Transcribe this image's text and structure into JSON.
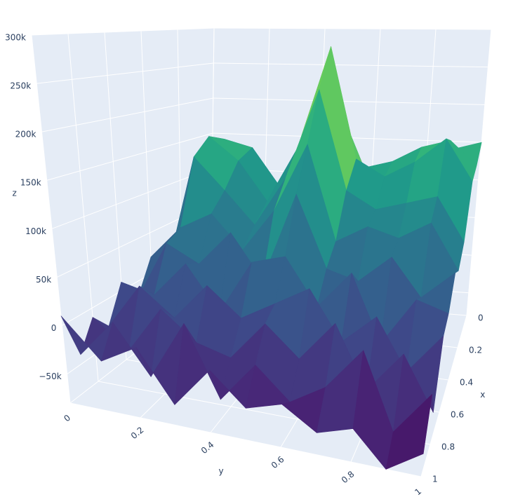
{
  "chart_data": {
    "type": "surface",
    "x": [
      0,
      0.1,
      0.2,
      0.3,
      0.4,
      0.5,
      0.6,
      0.7,
      0.8,
      0.9,
      1
    ],
    "y": [
      0,
      0.1,
      0.2,
      0.3,
      0.4,
      0.5,
      0.6,
      0.7,
      0.8,
      0.9,
      1
    ],
    "z": [
      [
        20000,
        40000,
        60000,
        50000,
        70000,
        90000,
        60000,
        80000,
        110000,
        140000,
        150000
      ],
      [
        10000,
        150000,
        140000,
        90000,
        160000,
        200000,
        120000,
        130000,
        150000,
        160000,
        130000
      ],
      [
        0,
        160000,
        130000,
        80000,
        150000,
        280000,
        140000,
        120000,
        140000,
        170000,
        120000
      ],
      [
        -10000,
        140000,
        100000,
        60000,
        120000,
        230000,
        110000,
        90000,
        100000,
        110000,
        60000
      ],
      [
        20000,
        60000,
        80000,
        40000,
        90000,
        170000,
        60000,
        80000,
        70000,
        90000,
        40000
      ],
      [
        -20000,
        50000,
        30000,
        70000,
        20000,
        120000,
        40000,
        30000,
        60000,
        20000,
        50000
      ],
      [
        10000,
        0,
        40000,
        -10000,
        50000,
        60000,
        10000,
        50000,
        -20000,
        30000,
        20000
      ],
      [
        -30000,
        20000,
        -10000,
        30000,
        0,
        20000,
        40000,
        -10000,
        20000,
        -30000,
        10000
      ],
      [
        -10000,
        -40000,
        10000,
        -20000,
        -30000,
        10000,
        -20000,
        20000,
        -40000,
        0,
        -50000
      ],
      [
        -40000,
        0,
        -50000,
        10000,
        -60000,
        -20000,
        -50000,
        -30000,
        10000,
        -60000,
        -20000
      ],
      [
        10000,
        -30000,
        -10000,
        -60000,
        -20000,
        -50000,
        -40000,
        -60000,
        -50000,
        -80000,
        -60000
      ]
    ],
    "colorscale": "Viridis",
    "xlabel": "x",
    "ylabel": "y",
    "zlabel": "z",
    "xlim": [
      0,
      1
    ],
    "ylim": [
      0,
      1
    ],
    "zlim": [
      -80000,
      300000
    ],
    "xticks": [
      0,
      0.2,
      0.4,
      0.6,
      0.8,
      1
    ],
    "yticks": [
      0,
      0.2,
      0.4,
      0.6,
      0.8,
      1
    ],
    "zticks": [
      {
        "value": -50000,
        "label": "−50k"
      },
      0,
      {
        "value": 50000,
        "label": "50k"
      },
      {
        "value": 100000,
        "label": "100k"
      },
      {
        "value": 150000,
        "label": "150k"
      },
      {
        "value": 200000,
        "label": "200k"
      },
      {
        "value": 250000,
        "label": "250k"
      },
      {
        "value": 300000,
        "label": "300k"
      }
    ],
    "grid": true
  }
}
